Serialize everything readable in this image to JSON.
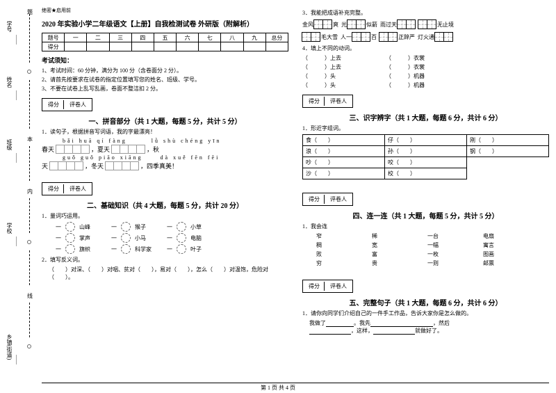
{
  "sidebar": {
    "labels": [
      "学号",
      "姓名",
      "班级",
      "学校",
      "乡镇(街道)"
    ],
    "markers": [
      "题",
      "本",
      "内",
      "线",
      "剪"
    ]
  },
  "secret": "绝密★启用前",
  "title": "2020 年实验小学二年级语文【上册】自我检测试卷 外研版（附解析）",
  "scoreHeaders": [
    "题号",
    "一",
    "二",
    "三",
    "四",
    "五",
    "六",
    "七",
    "八",
    "九",
    "总分"
  ],
  "scoreRow": "得分",
  "noticeTitle": "考试须知：",
  "notices": [
    "1、考试时间：60 分钟，满分为 100 分（含卷面分 2 分）。",
    "2、请首先按要求在试卷的指定位置填写您的姓名、班级、学号。",
    "3、不要在试卷上乱写乱画，卷面不整洁扣 2 分。"
  ],
  "scoreBox": {
    "left": "得分",
    "right": "评卷人"
  },
  "section1": {
    "title": "一、拼音部分（共 1 大题，每题 5 分，共计 5 分）",
    "q": "1．读句子，根据拼音写词语，我的字最漂亮！"
  },
  "pinyinRow1": "bǎi huā qí fàng",
  "pinyinRow1b": "lǜ shù chéng yīn",
  "pinyinRow2": "guǒ guǒ piāo xiāng",
  "pinyinRow2b": "dà xuě fēn fēi",
  "gridText": {
    "spring": "春天",
    "summer": "，夏天",
    "autumn": "，秋",
    "sky": "天",
    "winter": "，冬天",
    "end": "，四季真美！"
  },
  "section2": {
    "title": "二、基础知识（共 4 大题，每题 5 分，共计 20 分）",
    "q1": "1．量词巧运用。"
  },
  "match1": [
    [
      "山峰",
      "猴子",
      "小草"
    ],
    [
      "掌声",
      "小马",
      "电脑"
    ],
    [
      "旗帜",
      "科学家",
      "叶子"
    ]
  ],
  "matchPrefix": "一",
  "q2": "2．填写反义词。",
  "q2text": "（　　）对深、（　　）对咽、贫对（　　），易对（　　），怎么（　　）对温饱，危险对（　　）。",
  "q3": "3．我能把成语补充完整。",
  "idioms1": [
    {
      "pre": "金风",
      "cells": 2,
      "post": "爽"
    },
    {
      "pre": "光",
      "cells": 2,
      "post": "似箭"
    },
    {
      "pre": "雨过天",
      "cells": 2,
      "post": ""
    },
    {
      "pre": "",
      "cells": 2,
      "post": "无止境"
    }
  ],
  "idioms2": [
    {
      "pre": "",
      "cells": 2,
      "post": "毛大雪"
    },
    {
      "pre": "人一",
      "cells": 2,
      "post": "百"
    },
    {
      "pre": "",
      "cells": 2,
      "post": "正辞严"
    },
    {
      "pre": "灯火通",
      "cells": 2,
      "post": ""
    }
  ],
  "q4": "4．填上不同的动词。",
  "verbs": [
    [
      "（　　　）上去",
      "（　　　）衣裳"
    ],
    [
      "（　　　）上去",
      "（　　　）衣裳"
    ],
    [
      "（　　　）头",
      "（　　　）机器"
    ],
    [
      "（　　　）头",
      "（　　　）机器"
    ]
  ],
  "section3": {
    "title": "三、识字辨字（共 1 大题，每题 6 分，共计 6 分）",
    "q": "1．形近字组词。"
  },
  "zixing": [
    [
      "食（　　）",
      "仔（　　）",
      "刚（　　）"
    ],
    [
      "浪（　　）",
      "孙（　　）",
      "钢（　　）"
    ],
    [
      "吵（　　）",
      "咬（　　）",
      ""
    ],
    [
      "沙（　　）",
      "校（　　）",
      ""
    ]
  ],
  "section4": {
    "title": "四、连一连（共 1 大题，每题 5 分，共计 5 分）",
    "q": "1．我会连"
  },
  "lian": [
    [
      "窄",
      "稀",
      "一台",
      "电扇"
    ],
    [
      "稠",
      "宽",
      "一幅",
      "寓言"
    ],
    [
      "败",
      "富",
      "一枚",
      "图画"
    ],
    [
      "穷",
      "贵",
      "一则",
      "邮票"
    ]
  ],
  "section5": {
    "title": "五、完整句子（共 1 大题，每题 6 分，共计 6 分）",
    "q": "1．请你向同学们介绍自己的一件手工作品，告诉大家你是怎么做的。"
  },
  "s5text": {
    "a": "我做了",
    "b": "。我先",
    "c": "，然后",
    "d": "，这样，",
    "e": "就做好了。"
  },
  "footer": "第 1 页 共 4 页"
}
